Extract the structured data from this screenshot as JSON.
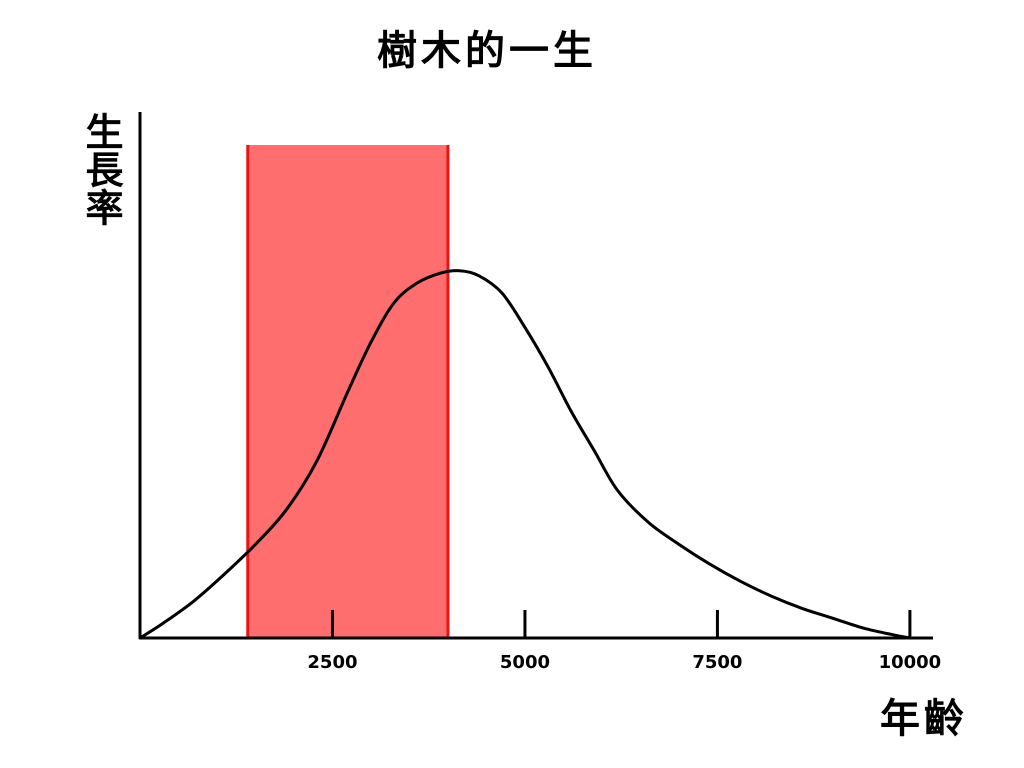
{
  "chart_data": {
    "type": "line",
    "title": "樹木的一生",
    "xlabel": "年齡",
    "ylabel": "生長率",
    "xlim": [
      0,
      10300
    ],
    "ylim": [
      0,
      1.0
    ],
    "x_ticks": [
      2500,
      5000,
      7500,
      10000
    ],
    "x_tick_labels": [
      "2500",
      "5000",
      "7500",
      "10000"
    ],
    "grid": false,
    "legend": "none",
    "series": [
      {
        "color": "#000000",
        "x": [
          0,
          300,
          700,
          1100,
          1500,
          1900,
          2300,
          2700,
          3000,
          3300,
          3600,
          3900,
          4150,
          4400,
          4700,
          5000,
          5300,
          5600,
          5900,
          6200,
          6600,
          7000,
          7400,
          7800,
          8200,
          8600,
          9000,
          9400,
          9800,
          10000
        ],
        "y": [
          0.0,
          0.03,
          0.075,
          0.13,
          0.19,
          0.26,
          0.36,
          0.5,
          0.6,
          0.68,
          0.72,
          0.74,
          0.745,
          0.735,
          0.7,
          0.63,
          0.55,
          0.46,
          0.38,
          0.3,
          0.235,
          0.19,
          0.15,
          0.115,
          0.085,
          0.06,
          0.04,
          0.02,
          0.006,
          0.0
        ]
      }
    ],
    "highlight_band": {
      "x_start": 1400,
      "x_end": 4000,
      "y_top": 1.0,
      "fill": "#ff6e6e",
      "edge": "#ee1111"
    }
  }
}
